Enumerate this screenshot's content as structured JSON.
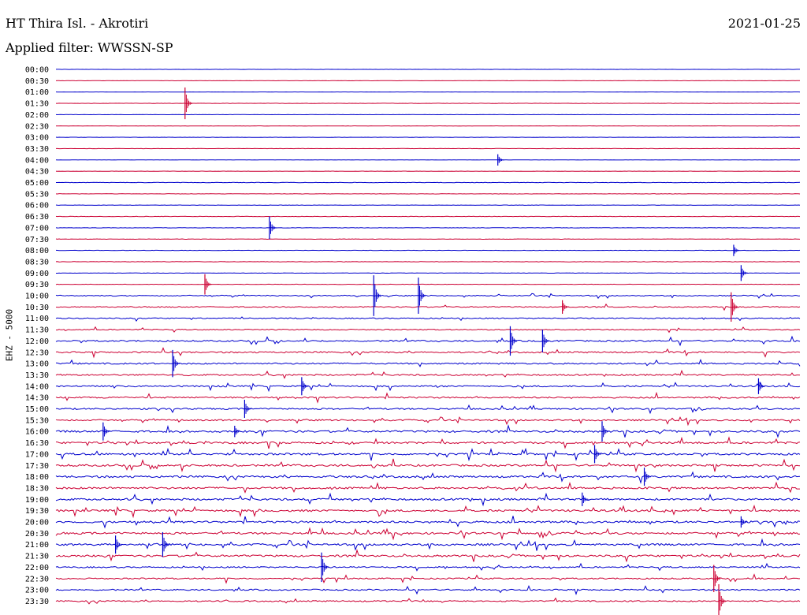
{
  "header": {
    "station": "HT Thira Isl. - Akrotiri",
    "date": "2021-01-25",
    "filter": "Applied filter: WWSSN-SP"
  },
  "chart_data": {
    "type": "line",
    "title": "HT Thira Isl. - Akrotiri",
    "date": "2021-01-25",
    "filter": "WWSSN-SP",
    "ylabel": "EHZ - 5000",
    "row_labels": [
      "00:00",
      "00:30",
      "01:00",
      "01:30",
      "02:00",
      "02:30",
      "03:00",
      "03:30",
      "04:00",
      "04:30",
      "05:00",
      "05:30",
      "06:00",
      "06:30",
      "07:00",
      "07:30",
      "08:00",
      "08:30",
      "09:00",
      "09:30",
      "10:00",
      "10:30",
      "11:00",
      "11:30",
      "12:00",
      "12:30",
      "13:00",
      "13:30",
      "14:00",
      "14:30",
      "15:00",
      "15:30",
      "16:00",
      "16:30",
      "17:00",
      "17:30",
      "18:00",
      "18:30",
      "19:00",
      "19:30",
      "20:00",
      "20:30",
      "21:00",
      "21:30",
      "22:00",
      "22:30",
      "23:00",
      "23:30"
    ],
    "trace_colors": [
      "#0000cc",
      "#cc0033"
    ],
    "minutes_per_row": 30,
    "events": [
      {
        "row": 3,
        "minute": 5.2,
        "amp": 1.4
      },
      {
        "row": 8,
        "minute": 17.8,
        "amp": 0.5
      },
      {
        "row": 14,
        "minute": 8.6,
        "amp": 1.0
      },
      {
        "row": 16,
        "minute": 27.3,
        "amp": 0.5
      },
      {
        "row": 18,
        "minute": 27.6,
        "amp": 0.7
      },
      {
        "row": 19,
        "minute": 6.0,
        "amp": 0.9
      },
      {
        "row": 20,
        "minute": 12.8,
        "amp": 1.8
      },
      {
        "row": 20,
        "minute": 14.6,
        "amp": 1.6
      },
      {
        "row": 21,
        "minute": 20.4,
        "amp": 0.6
      },
      {
        "row": 21,
        "minute": 27.2,
        "amp": 1.3
      },
      {
        "row": 24,
        "minute": 19.6,
        "amp": 1.0
      },
      {
        "row": 24,
        "minute": 18.3,
        "amp": 1.3
      },
      {
        "row": 26,
        "minute": 4.7,
        "amp": 1.2
      },
      {
        "row": 28,
        "minute": 9.9,
        "amp": 0.8
      },
      {
        "row": 28,
        "minute": 28.3,
        "amp": 0.7
      },
      {
        "row": 30,
        "minute": 7.6,
        "amp": 0.8
      },
      {
        "row": 32,
        "minute": 1.9,
        "amp": 0.8
      },
      {
        "row": 32,
        "minute": 7.2,
        "amp": 0.5
      },
      {
        "row": 32,
        "minute": 22.0,
        "amp": 0.9
      },
      {
        "row": 34,
        "minute": 21.7,
        "amp": 0.8
      },
      {
        "row": 36,
        "minute": 23.7,
        "amp": 0.8
      },
      {
        "row": 38,
        "minute": 21.2,
        "amp": 0.6
      },
      {
        "row": 40,
        "minute": 27.6,
        "amp": 0.5
      },
      {
        "row": 42,
        "minute": 2.4,
        "amp": 0.8
      },
      {
        "row": 42,
        "minute": 4.3,
        "amp": 1.1
      },
      {
        "row": 44,
        "minute": 10.7,
        "amp": 1.3
      },
      {
        "row": 45,
        "minute": 26.5,
        "amp": 1.2
      },
      {
        "row": 47,
        "minute": 26.7,
        "amp": 1.5
      }
    ]
  }
}
